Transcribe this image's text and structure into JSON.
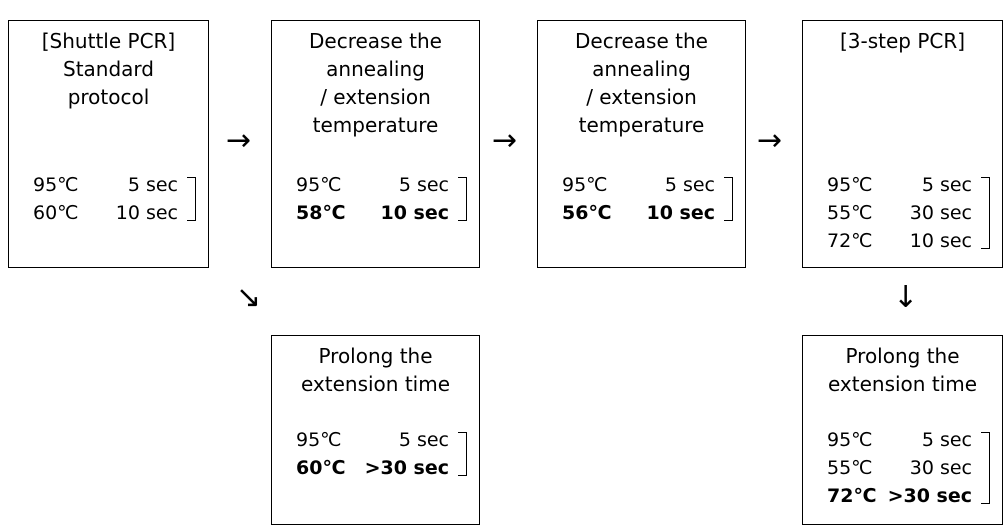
{
  "boxes": [
    {
      "id": "shuttle-standard",
      "title": "[Shuttle PCR]\nStandard\nprotocol",
      "steps": [
        {
          "temp": "95℃",
          "time": "5 sec",
          "bold": false
        },
        {
          "temp": "60℃",
          "time": "10 sec",
          "bold": false
        }
      ]
    },
    {
      "id": "decrease-58",
      "title": "Decrease the\nannealing\n/ extension\ntemperature",
      "steps": [
        {
          "temp": "95℃",
          "time": "5 sec",
          "bold": false
        },
        {
          "temp": "58℃",
          "time": "10 sec",
          "bold": true
        }
      ]
    },
    {
      "id": "decrease-56",
      "title": "Decrease the\nannealing\n/ extension\ntemperature",
      "steps": [
        {
          "temp": "95℃",
          "time": "5 sec",
          "bold": false
        },
        {
          "temp": "56℃",
          "time": "10 sec",
          "bold": true
        }
      ]
    },
    {
      "id": "three-step",
      "title": "[3-step PCR]",
      "steps": [
        {
          "temp": "95℃",
          "time": "5 sec",
          "bold": false
        },
        {
          "temp": "55℃",
          "time": "30 sec",
          "bold": false
        },
        {
          "temp": "72℃",
          "time": "10 sec",
          "bold": false
        }
      ]
    },
    {
      "id": "prolong-shuttle",
      "title": "Prolong the\nextension time",
      "steps": [
        {
          "temp": "95℃",
          "time": "5 sec",
          "bold": false
        },
        {
          "temp": "60℃",
          "time": ">30 sec",
          "bold": true
        }
      ]
    },
    {
      "id": "prolong-three-step",
      "title": "Prolong the\nextension time",
      "steps": [
        {
          "temp": "95℃",
          "time": "5 sec",
          "bold": false
        },
        {
          "temp": "55℃",
          "time": "30 sec",
          "bold": false
        },
        {
          "temp": "72℃",
          "time": ">30 sec",
          "bold": true
        }
      ]
    }
  ],
  "arrows": {
    "right": "→",
    "down_right": "↘",
    "down": "↓"
  }
}
